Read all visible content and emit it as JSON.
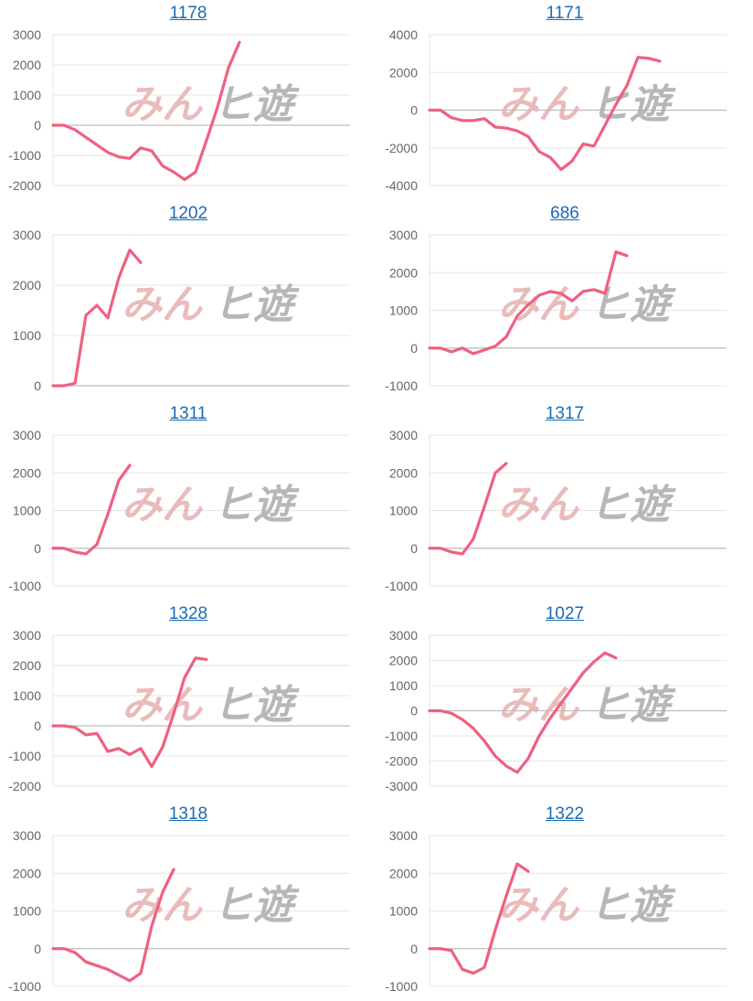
{
  "colors": {
    "line": "#f06080",
    "grid": "#e6e6e6",
    "axis": "#bdbdbd",
    "title": "#1a6bb5",
    "watermark_pink": "#e8b4b4",
    "watermark_gray": "#b0b0b0"
  },
  "chart_data": [
    {
      "type": "line",
      "title": "1178",
      "ylim": [
        -2000,
        3000
      ],
      "yticks": [
        "3000",
        "2000",
        "1000",
        "0",
        "-1000",
        "-2000"
      ],
      "y": [
        0,
        0,
        -150,
        -400,
        -650,
        -900,
        -1050,
        -1100,
        -750,
        -850,
        -1350,
        -1550,
        -1800,
        -1550,
        -500,
        600,
        1900,
        2750
      ]
    },
    {
      "type": "line",
      "title": "1171",
      "ylim": [
        -4000,
        4000
      ],
      "yticks": [
        "4000",
        "2000",
        "0",
        "-2000",
        "-4000"
      ],
      "y": [
        0,
        0,
        -400,
        -550,
        -550,
        -450,
        -900,
        -950,
        -1100,
        -1400,
        -2200,
        -2500,
        -3150,
        -2700,
        -1800,
        -1900,
        -800,
        300,
        1300,
        2800,
        2750,
        2600
      ]
    },
    {
      "type": "line",
      "title": "1202",
      "ylim": [
        0,
        3000
      ],
      "yticks": [
        "3000",
        "2000",
        "1000",
        "0"
      ],
      "y": [
        0,
        0,
        50,
        1400,
        1600,
        1350,
        2150,
        2700,
        2450
      ]
    },
    {
      "type": "line",
      "title": "686",
      "ylim": [
        -1000,
        3000
      ],
      "yticks": [
        "3000",
        "2000",
        "1000",
        "0",
        "-1000"
      ],
      "y": [
        0,
        0,
        -100,
        0,
        -150,
        -50,
        50,
        300,
        850,
        1150,
        1400,
        1500,
        1450,
        1250,
        1500,
        1550,
        1450,
        2550,
        2450
      ]
    },
    {
      "type": "line",
      "title": "1311",
      "ylim": [
        -1000,
        3000
      ],
      "yticks": [
        "3000",
        "2000",
        "1000",
        "0",
        "-1000"
      ],
      "y": [
        0,
        0,
        -100,
        -150,
        100,
        900,
        1800,
        2200
      ]
    },
    {
      "type": "line",
      "title": "1317",
      "ylim": [
        -1000,
        3000
      ],
      "yticks": [
        "3000",
        "2000",
        "1000",
        "0",
        "-1000"
      ],
      "y": [
        0,
        0,
        -100,
        -150,
        250,
        1100,
        2000,
        2250
      ]
    },
    {
      "type": "line",
      "title": "1328",
      "ylim": [
        -2000,
        3000
      ],
      "yticks": [
        "3000",
        "2000",
        "1000",
        "0",
        "-1000",
        "-2000"
      ],
      "y": [
        0,
        0,
        -50,
        -300,
        -250,
        -850,
        -750,
        -950,
        -750,
        -1350,
        -700,
        400,
        1600,
        2250,
        2200
      ]
    },
    {
      "type": "line",
      "title": "1027",
      "ylim": [
        -3000,
        3000
      ],
      "yticks": [
        "3000",
        "2000",
        "1000",
        "0",
        "-1000",
        "-2000",
        "-3000"
      ],
      "y": [
        0,
        0,
        -100,
        -350,
        -700,
        -1200,
        -1800,
        -2200,
        -2450,
        -1900,
        -1000,
        -300,
        300,
        900,
        1500,
        1950,
        2300,
        2100
      ]
    },
    {
      "type": "line",
      "title": "1318",
      "ylim": [
        -1000,
        3000
      ],
      "yticks": [
        "3000",
        "2000",
        "1000",
        "0",
        "-1000"
      ],
      "y": [
        0,
        0,
        -100,
        -350,
        -450,
        -550,
        -700,
        -850,
        -650,
        600,
        1500,
        2100
      ]
    },
    {
      "type": "line",
      "title": "1322",
      "ylim": [
        -1000,
        3000
      ],
      "yticks": [
        "3000",
        "2000",
        "1000",
        "0",
        "-1000"
      ],
      "y": [
        0,
        0,
        -50,
        -550,
        -650,
        -500,
        500,
        1400,
        2250,
        2050
      ]
    }
  ]
}
